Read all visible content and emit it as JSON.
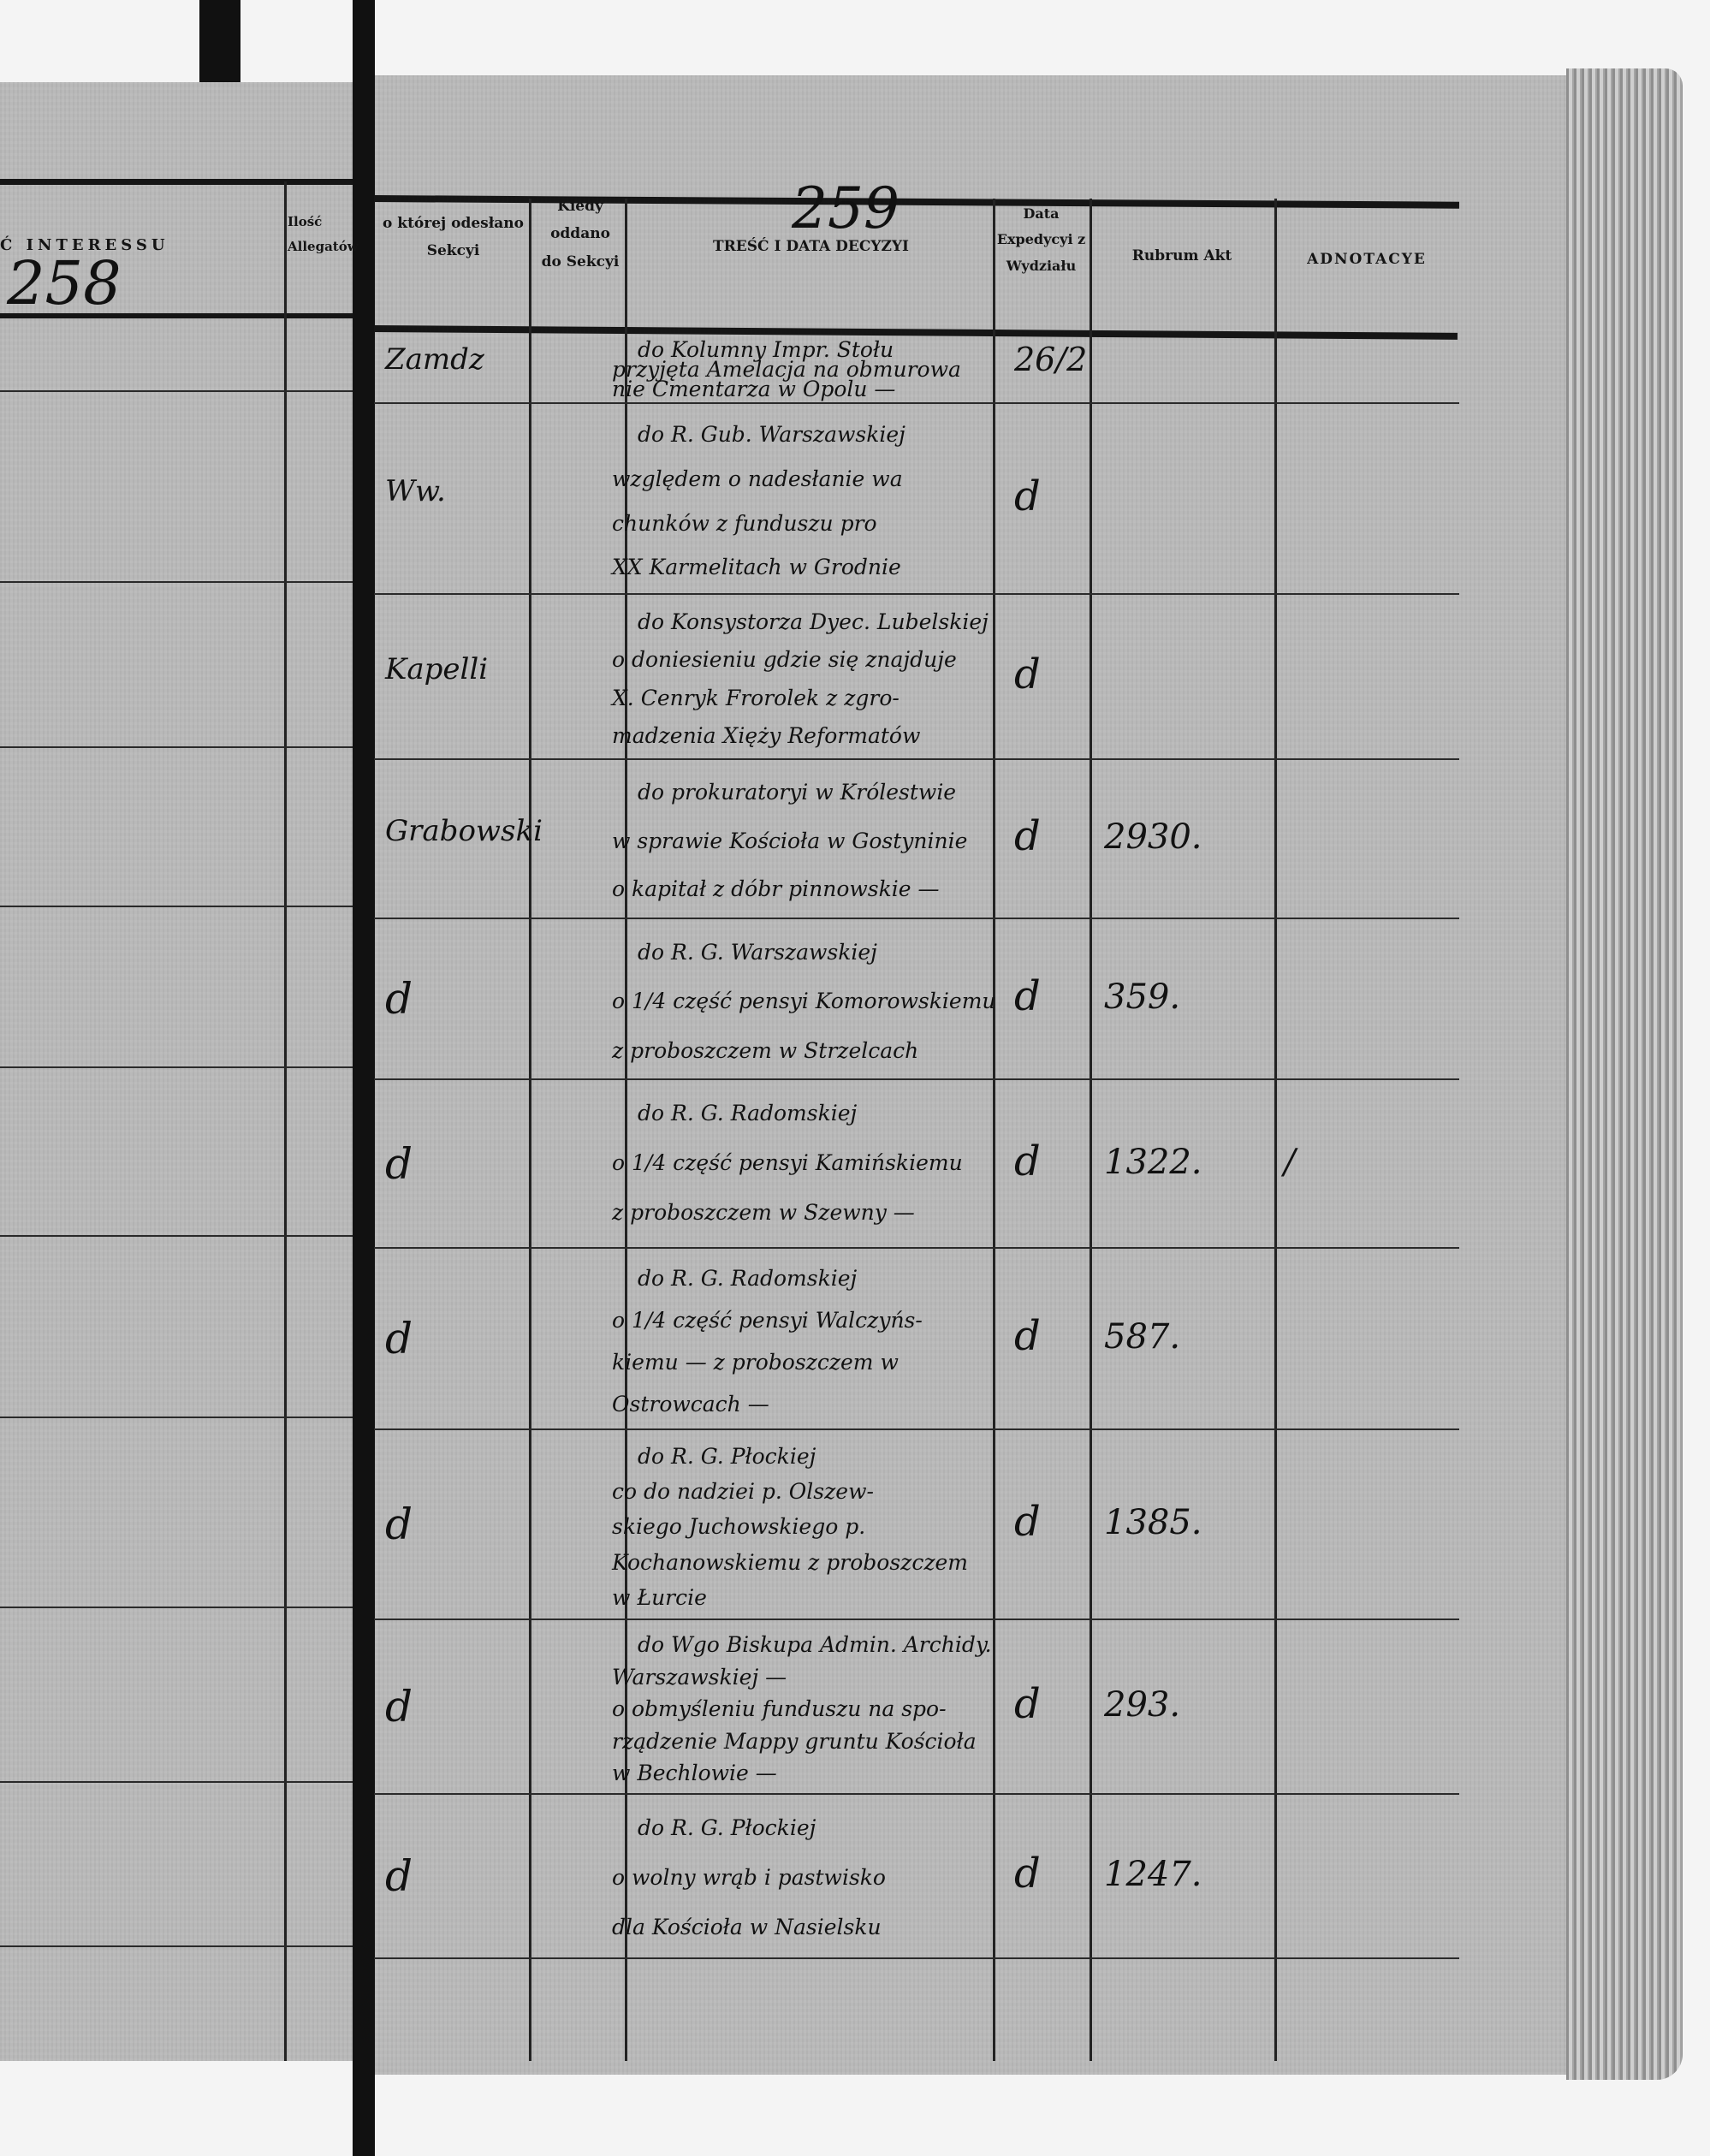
{
  "left_page": {
    "header_title": "Ć INTERESSU",
    "header_allegata": "Ilość Allegatów",
    "page_number": "258"
  },
  "right_page": {
    "page_number": "259",
    "headers": {
      "sekcja": "o której odesłano Sekcyi",
      "kiedy": "Kiedy oddano do Sekcyi",
      "tresc": "TREŚĆ I DATA DECYZYI",
      "data_expedycyi": "Data Expedycyi z Wydziału",
      "rubrum": "Rubrum Akt",
      "adnotacye": "ADNOTACYE"
    },
    "rows": [
      {
        "sekcja": "Zamdz",
        "tresc": [
          "do Kolumny Impr. Stołu",
          "przyjęta Amelacja na obmurowa",
          "nie Cmentarza w Opolu —"
        ],
        "expedycja": "26/2",
        "rubrum": "",
        "adnotacye": ""
      },
      {
        "sekcja": "Ww.",
        "tresc": [
          "do R. Gub. Warszawskiej",
          "względem o nadesłanie wa",
          "chunków z funduszu pro",
          "XX Karmelitach w Grodnie"
        ],
        "expedycja": "d",
        "rubrum": "",
        "adnotacye": ""
      },
      {
        "sekcja": "Kapelli",
        "tresc": [
          "do Konsystorza Dyec. Lubelskiej",
          "o doniesieniu gdzie się znajduje",
          "X. Cenryk Frorolek z zgro-",
          "madzenia Xięży Reformatów"
        ],
        "expedycja": "d",
        "rubrum": "",
        "adnotacye": ""
      },
      {
        "sekcja": "Grabowski",
        "tresc": [
          "do prokuratoryi w Królestwie",
          "w sprawie Kościoła w Gostyninie",
          "o kapitał z dóbr pinnowskie —"
        ],
        "expedycja": "d",
        "rubrum": "2930.",
        "adnotacye": ""
      },
      {
        "sekcja": "d",
        "tresc": [
          "do R. G. Warszawskiej",
          "o 1/4 część pensyi Komorowskiemu",
          "z proboszczem w Strzelcach"
        ],
        "expedycja": "d",
        "rubrum": "359.",
        "adnotacye": ""
      },
      {
        "sekcja": "d",
        "tresc": [
          "do R. G. Radomskiej",
          "o 1/4 część pensyi Kamińskiemu",
          "z proboszczem w Szewny —"
        ],
        "expedycja": "d",
        "rubrum": "1322.",
        "adnotacye": "/"
      },
      {
        "sekcja": "d",
        "tresc": [
          "do R. G. Radomskiej",
          "o 1/4 część pensyi Walczyńs-",
          "kiemu — z proboszczem w",
          "Ostrowcach —"
        ],
        "expedycja": "d",
        "rubrum": "587.",
        "adnotacye": ""
      },
      {
        "sekcja": "d",
        "tresc": [
          "do R. G. Płockiej",
          "co do nadziei p. Olszew-",
          "skiego Juchowskiego p.",
          "Kochanowskiemu z proboszczem",
          "w Łurcie"
        ],
        "expedycja": "d",
        "rubrum": "1385.",
        "adnotacye": ""
      },
      {
        "sekcja": "d",
        "tresc": [
          "do Wgo Biskupa Admin. Archidy.",
          "Warszawskiej —",
          "o obmyśleniu funduszu na spo-",
          "rządzenie Mappy gruntu Kościoła",
          "w Bechlowie —"
        ],
        "expedycja": "d",
        "rubrum": "293.",
        "adnotacye": ""
      },
      {
        "sekcja": "d",
        "tresc": [
          "do R. G. Płockiej",
          "o wolny wrąb i pastwisko",
          "dla Kościoła w Nasielsku"
        ],
        "expedycja": "d",
        "rubrum": "1247.",
        "adnotacye": ""
      }
    ]
  }
}
